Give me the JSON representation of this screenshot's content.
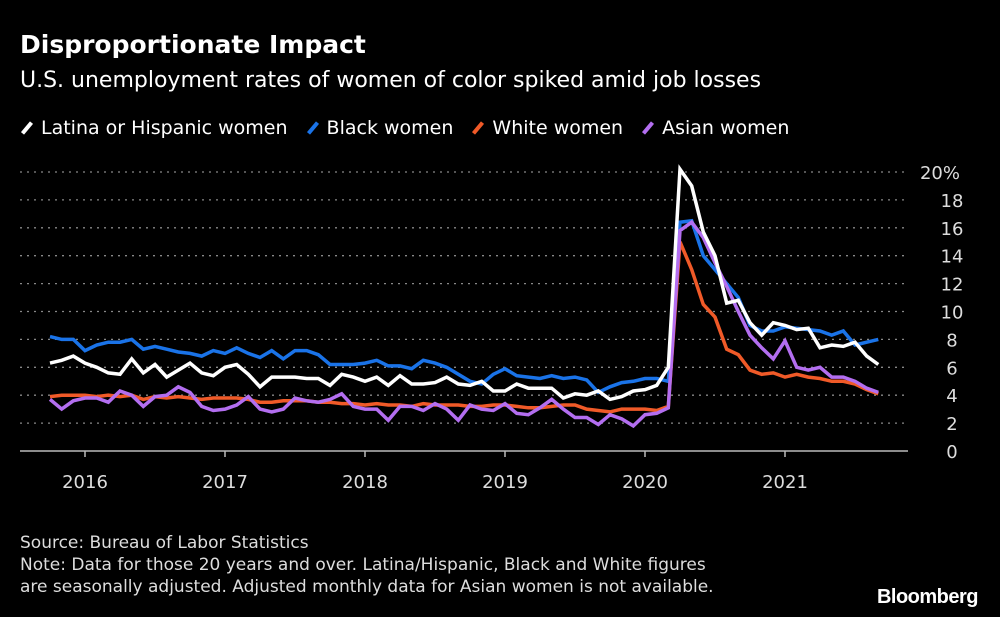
{
  "title": "Disproportionate Impact",
  "subtitle": "U.S. unemployment rates of women of color spiked amid job losses",
  "source": "Source: Bureau of Labor Statistics",
  "note_lines": [
    "Note: Data for those 20 years and over. Latina/Hispanic, Black and White figures",
    "are seasonally adjusted. Adjusted monthly data for Asian women is not available."
  ],
  "logo": "Bloomberg",
  "chart_data": {
    "type": "line",
    "x_start": "2015-10",
    "x_end": "2021-09",
    "frequency": "monthly",
    "xticks": [
      "2016",
      "2017",
      "2018",
      "2019",
      "2020",
      "2021"
    ],
    "yticks": [
      "0",
      "2",
      "4",
      "6",
      "8",
      "10",
      "12",
      "14",
      "16",
      "18",
      "20%"
    ],
    "ylim": [
      0,
      20
    ],
    "grid": "horizontal dotted",
    "legend": "top-left",
    "y_axis_side": "right",
    "series": [
      {
        "name": "Latina or Hispanic women",
        "color": "#ffffff",
        "values": [
          6.3,
          6.5,
          6.8,
          6.3,
          6.0,
          5.6,
          5.5,
          6.6,
          5.6,
          6.2,
          5.3,
          5.8,
          6.3,
          5.6,
          5.4,
          6.0,
          6.2,
          5.5,
          4.6,
          5.3,
          5.3,
          5.3,
          5.2,
          5.2,
          4.7,
          5.5,
          5.3,
          5.0,
          5.3,
          4.7,
          5.4,
          4.8,
          4.8,
          4.9,
          5.3,
          4.8,
          4.7,
          5.0,
          4.3,
          4.3,
          4.8,
          4.5,
          4.5,
          4.5,
          3.8,
          4.1,
          4.0,
          4.3,
          3.7,
          3.9,
          4.3,
          4.4,
          4.7,
          6.0,
          20.2,
          19.0,
          15.7,
          14.0,
          10.6,
          10.8,
          9.2,
          8.3,
          9.2,
          9.0,
          8.7,
          8.8,
          7.4,
          7.6,
          7.5,
          7.8,
          6.8,
          6.2
        ]
      },
      {
        "name": "Black women",
        "color": "#1a73e8",
        "values": [
          8.2,
          8.0,
          8.0,
          7.2,
          7.6,
          7.8,
          7.8,
          8.0,
          7.3,
          7.5,
          7.3,
          7.1,
          7.0,
          6.8,
          7.2,
          7.0,
          7.4,
          7.0,
          6.7,
          7.2,
          6.6,
          7.2,
          7.2,
          6.9,
          6.2,
          6.2,
          6.2,
          6.3,
          6.5,
          6.1,
          6.1,
          5.9,
          6.5,
          6.3,
          6.0,
          5.5,
          5.0,
          4.8,
          5.5,
          5.9,
          5.4,
          5.3,
          5.2,
          5.4,
          5.2,
          5.3,
          5.1,
          4.2,
          4.6,
          4.9,
          5.0,
          5.2,
          5.2,
          5.0,
          16.4,
          16.5,
          14.0,
          13.0,
          12.0,
          11.0,
          9.0,
          8.6,
          8.6,
          8.9,
          8.8,
          8.7,
          8.6,
          8.3,
          8.6,
          7.6,
          7.8,
          8.0
        ]
      },
      {
        "name": "White women",
        "color": "#f05a28",
        "values": [
          3.9,
          4.0,
          4.0,
          4.0,
          3.9,
          4.0,
          3.9,
          4.0,
          3.7,
          3.9,
          3.8,
          3.9,
          3.8,
          3.7,
          3.8,
          3.8,
          3.8,
          3.7,
          3.5,
          3.5,
          3.6,
          3.6,
          3.6,
          3.5,
          3.5,
          3.4,
          3.4,
          3.3,
          3.4,
          3.3,
          3.3,
          3.2,
          3.4,
          3.3,
          3.3,
          3.3,
          3.2,
          3.2,
          3.3,
          3.3,
          3.2,
          3.1,
          3.1,
          3.2,
          3.3,
          3.3,
          3.0,
          2.9,
          2.8,
          3.0,
          3.0,
          3.0,
          2.9,
          3.2,
          15.0,
          13.0,
          10.5,
          9.6,
          7.3,
          6.9,
          5.8,
          5.5,
          5.6,
          5.3,
          5.5,
          5.3,
          5.2,
          5.0,
          5.0,
          4.8,
          4.4,
          4.1
        ]
      },
      {
        "name": "Asian women",
        "color": "#b36ef0",
        "values": [
          3.7,
          3.0,
          3.6,
          3.8,
          3.8,
          3.5,
          4.3,
          4.0,
          3.2,
          3.9,
          4.0,
          4.6,
          4.2,
          3.2,
          2.9,
          3.0,
          3.3,
          3.9,
          3.0,
          2.8,
          3.0,
          3.8,
          3.6,
          3.5,
          3.7,
          4.1,
          3.2,
          3.0,
          3.0,
          2.2,
          3.2,
          3.2,
          2.9,
          3.4,
          3.0,
          2.2,
          3.3,
          3.0,
          2.9,
          3.4,
          2.7,
          2.6,
          3.1,
          3.7,
          3.0,
          2.4,
          2.4,
          1.9,
          2.6,
          2.3,
          1.8,
          2.6,
          2.7,
          3.1,
          15.8,
          16.4,
          15.3,
          13.5,
          11.8,
          10.0,
          8.3,
          7.4,
          6.6,
          7.9,
          6.0,
          5.8,
          6.0,
          5.3,
          5.3,
          5.0,
          4.5,
          4.2
        ]
      }
    ]
  }
}
